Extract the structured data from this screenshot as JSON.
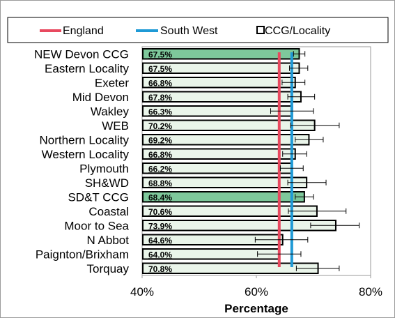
{
  "chart_data": {
    "type": "bar",
    "orientation": "horizontal",
    "categories": [
      "NEW Devon CCG",
      "Eastern Locality",
      "Exeter",
      "Mid Devon",
      "Wakley",
      "WEB",
      "Northern Locality",
      "Western Locality",
      "Plymouth",
      "SH&WD",
      "SD&T CCG",
      "Coastal",
      "Moor to Sea",
      "N Abbot",
      "Paignton/Brixham",
      "Torquay"
    ],
    "values": [
      67.5,
      67.5,
      66.8,
      67.8,
      66.3,
      70.2,
      69.2,
      66.8,
      66.2,
      68.8,
      68.4,
      70.6,
      73.9,
      64.6,
      64.0,
      70.8
    ],
    "value_labels": [
      "67.5%",
      "67.5%",
      "66.8%",
      "67.8%",
      "66.3%",
      "70.2%",
      "69.2%",
      "66.8%",
      "66.2%",
      "68.8%",
      "68.4%",
      "70.6%",
      "73.9%",
      "64.6%",
      "64.0%",
      "70.8%"
    ],
    "ci_lower": [
      66.5,
      65.8,
      64.5,
      65.5,
      62.5,
      66.0,
      66.8,
      64.6,
      64.2,
      65.5,
      66.8,
      65.6,
      69.5,
      59.8,
      60.2,
      67.0
    ],
    "ci_upper": [
      68.5,
      69.0,
      68.5,
      70.2,
      70.0,
      74.5,
      71.7,
      68.8,
      68.2,
      72.2,
      70.0,
      75.7,
      78.0,
      69.0,
      67.8,
      74.5
    ],
    "highlighted": [
      true,
      false,
      false,
      false,
      false,
      false,
      false,
      false,
      false,
      false,
      true,
      false,
      false,
      false,
      false,
      false
    ],
    "reference_lines": [
      {
        "name": "England",
        "value": 64.0,
        "color": "#e8495f"
      },
      {
        "name": "South West",
        "value": 66.2,
        "color": "#1f9ad6"
      }
    ],
    "legend": [
      {
        "label": "England",
        "symbol": "line",
        "color": "#e8495f"
      },
      {
        "label": "South West",
        "symbol": "line",
        "color": "#1f9ad6"
      },
      {
        "label": "CCG/Locality",
        "symbol": "box",
        "color": "#000000"
      }
    ],
    "legend_position": "top",
    "xlim": [
      40,
      80
    ],
    "xticks": [
      40,
      60,
      80
    ],
    "xtick_labels": [
      "40%",
      "60%",
      "80%"
    ],
    "xlabel": "Percentage",
    "colors": {
      "bar_fill": "#eaf5ea",
      "bar_highlight_fill": "#7ec89b",
      "bar_stroke": "#000000",
      "plot_bg": "#ffffff",
      "plot_border": "#9a9a9a"
    }
  }
}
